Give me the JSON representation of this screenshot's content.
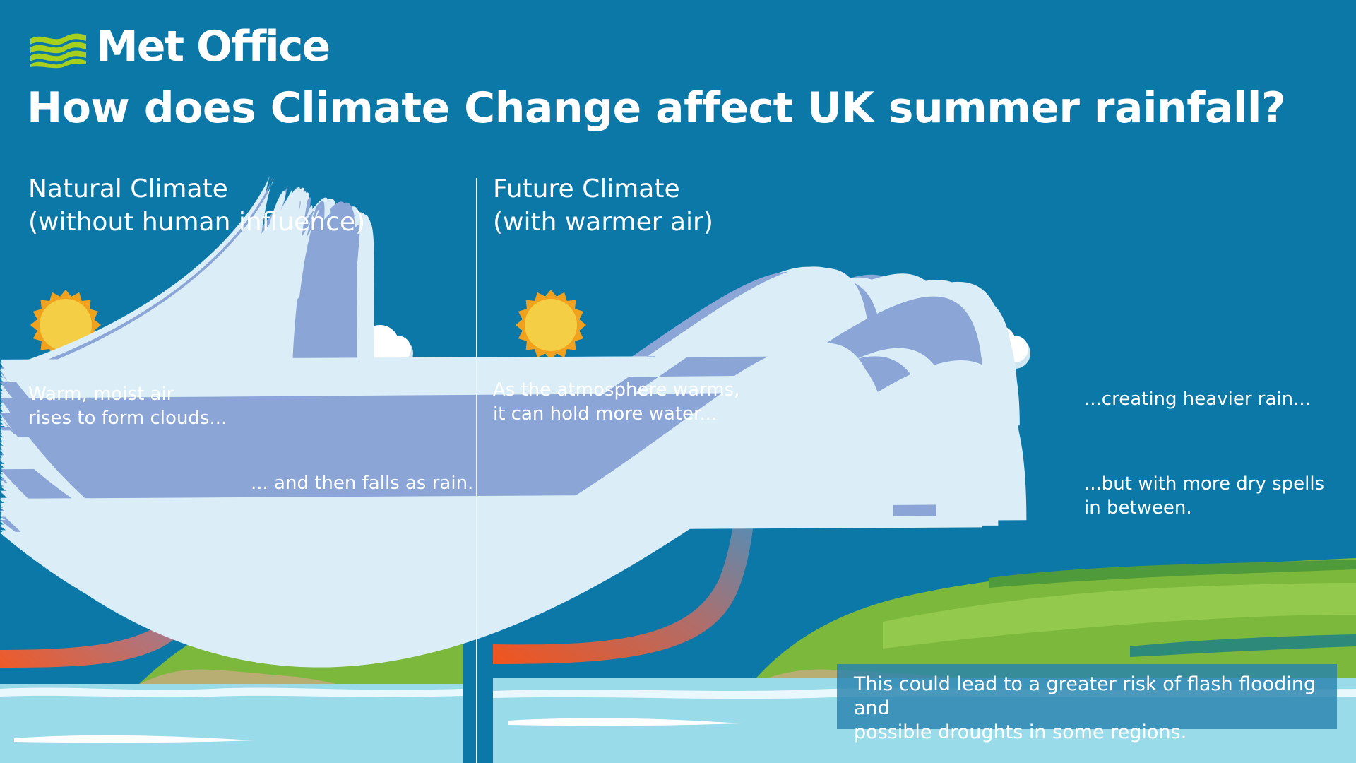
{
  "brand": {
    "name": "Met Office"
  },
  "title": "How does Climate Change affect UK summer rainfall?",
  "natural": {
    "heading_line1": "Natural Climate",
    "heading_line2": "(without human influence)",
    "caption_rise_line1": "Warm, moist air",
    "caption_rise_line2": "rises to form clouds...",
    "caption_rain": "... and then falls as rain."
  },
  "future": {
    "heading_line1": "Future Climate",
    "heading_line2": "(with warmer air)",
    "caption_hold_line1": "As the atmosphere warms,",
    "caption_hold_line2": "it can hold more water...",
    "caption_heavier": "...creating heavier rain...",
    "caption_dry_line1": "...but with more dry spells",
    "caption_dry_line2": "in between.",
    "note_line1": "This could lead to a greater risk of flash flooding and",
    "note_line2": "possible droughts in some regions."
  },
  "colors": {
    "background": "#0b78a8",
    "logo_green": "#a6cf1e",
    "sun": "#f4cf45",
    "sun_rays": "#f0a21e",
    "arrow_warm": "#f05a28",
    "arrow_cool": "#3f95c9",
    "land_green": "#7cb83c",
    "sea": "#9adbea",
    "raindrop": "#dbeef7"
  },
  "icons": {
    "logo": "met-office-wave-logo",
    "sun": "sun-icon",
    "cloud": "cloud-icon",
    "rain": "raindrop-icon",
    "arrow": "rising-air-arrow"
  }
}
